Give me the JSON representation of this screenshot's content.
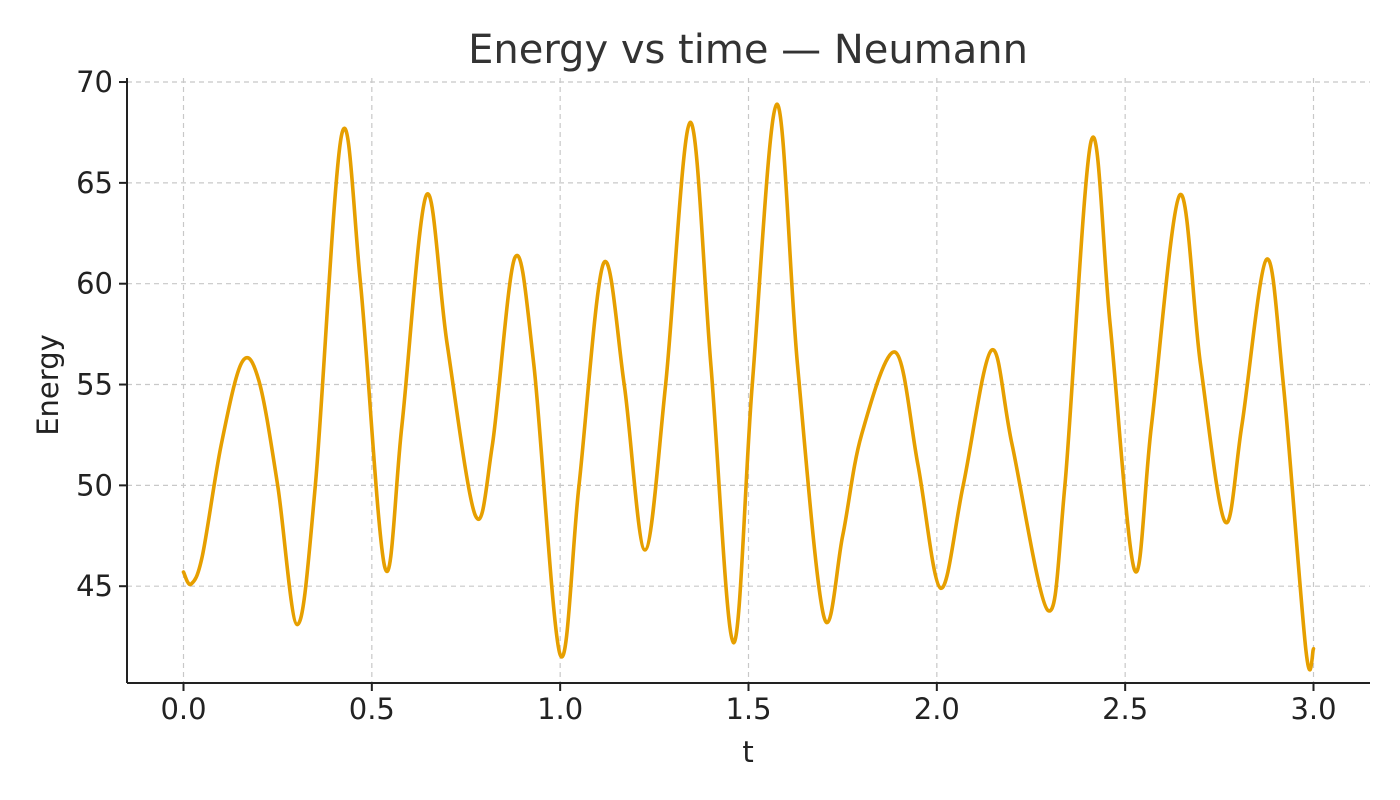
{
  "chart_data": {
    "type": "line",
    "title": "Energy vs time — Neumann",
    "xlabel": "t",
    "ylabel": "Energy",
    "xlim": [
      -0.15,
      3.15
    ],
    "ylim": [
      40.2,
      70.2
    ],
    "xticks": [
      0.0,
      0.5,
      1.0,
      1.5,
      2.0,
      2.5,
      3.0
    ],
    "xtick_labels": [
      "0.0",
      "0.5",
      "1.0",
      "1.5",
      "2.0",
      "2.5",
      "3.0"
    ],
    "yticks": [
      45,
      50,
      55,
      60,
      65,
      70
    ],
    "ytick_labels": [
      "45",
      "50",
      "55",
      "60",
      "65",
      "70"
    ],
    "grid": true,
    "colors": {
      "series": "#E69F00"
    },
    "series": [
      {
        "points": [
          [
            0.0,
            45.7
          ],
          [
            0.02,
            45.1
          ],
          [
            0.05,
            46.5
          ],
          [
            0.1,
            52.0
          ],
          [
            0.155,
            56.1
          ],
          [
            0.2,
            55.2
          ],
          [
            0.25,
            50.0
          ],
          [
            0.302,
            43.1
          ],
          [
            0.35,
            50.0
          ],
          [
            0.42,
            67.4
          ],
          [
            0.47,
            60.0
          ],
          [
            0.535,
            45.9
          ],
          [
            0.58,
            53.0
          ],
          [
            0.645,
            64.4
          ],
          [
            0.7,
            57.0
          ],
          [
            0.775,
            48.5
          ],
          [
            0.82,
            52.0
          ],
          [
            0.88,
            61.3
          ],
          [
            0.93,
            56.0
          ],
          [
            1.0,
            41.6
          ],
          [
            1.05,
            50.0
          ],
          [
            1.115,
            61.0
          ],
          [
            1.17,
            55.0
          ],
          [
            1.225,
            46.8
          ],
          [
            1.28,
            55.0
          ],
          [
            1.345,
            68.0
          ],
          [
            1.4,
            56.0
          ],
          [
            1.46,
            42.2
          ],
          [
            1.51,
            55.0
          ],
          [
            1.575,
            68.9
          ],
          [
            1.63,
            56.0
          ],
          [
            1.7,
            43.5
          ],
          [
            1.75,
            47.5
          ],
          [
            1.8,
            52.5
          ],
          [
            1.89,
            56.6
          ],
          [
            1.95,
            51.0
          ],
          [
            2.01,
            44.9
          ],
          [
            2.07,
            50.0
          ],
          [
            2.145,
            56.7
          ],
          [
            2.2,
            52.0
          ],
          [
            2.295,
            43.8
          ],
          [
            2.34,
            50.0
          ],
          [
            2.41,
            67.1
          ],
          [
            2.46,
            58.0
          ],
          [
            2.525,
            45.8
          ],
          [
            2.57,
            53.0
          ],
          [
            2.645,
            64.4
          ],
          [
            2.7,
            56.0
          ],
          [
            2.765,
            48.2
          ],
          [
            2.81,
            53.0
          ],
          [
            2.875,
            61.2
          ],
          [
            2.92,
            55.0
          ],
          [
            2.98,
            41.8
          ],
          [
            3.0,
            41.9
          ]
        ]
      }
    ]
  }
}
